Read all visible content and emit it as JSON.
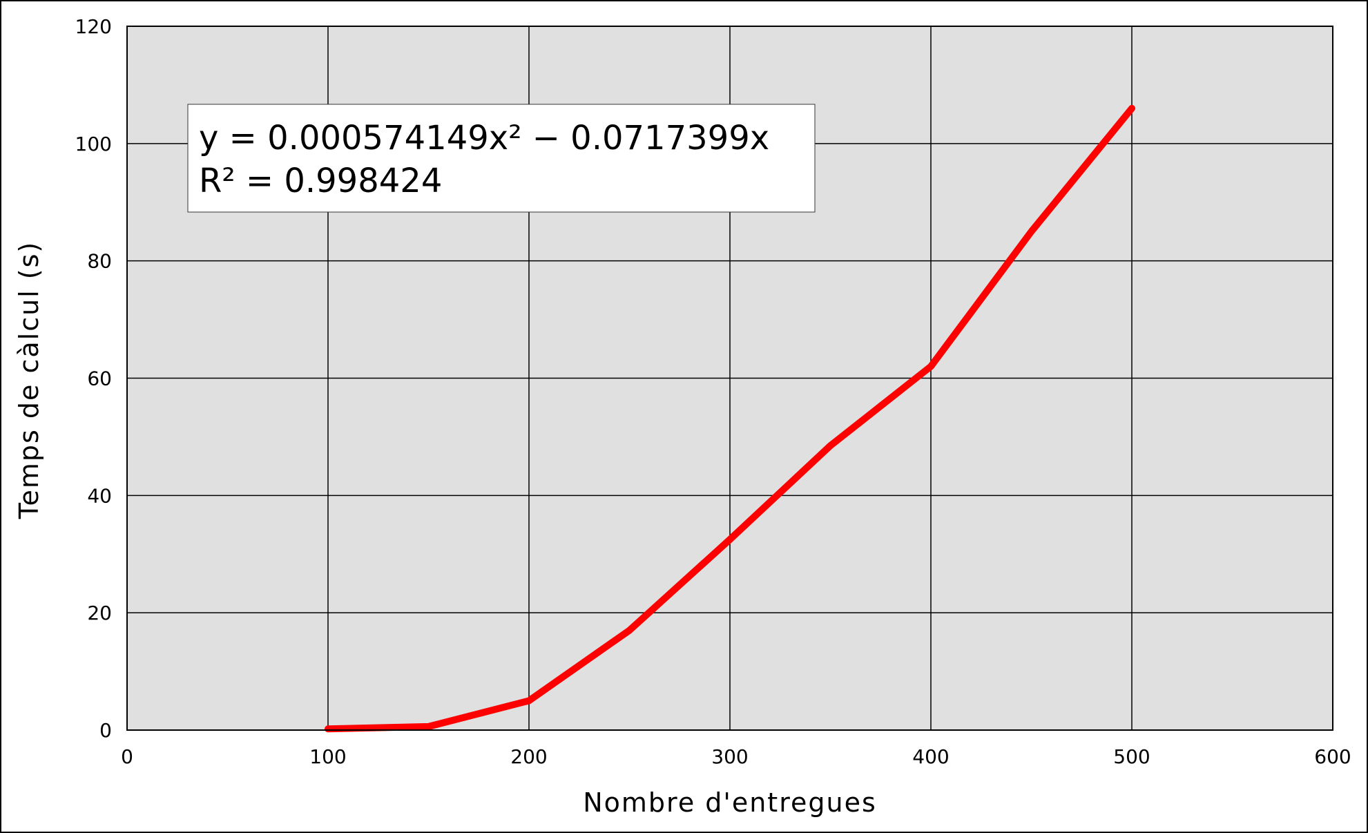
{
  "chart_data": {
    "type": "line",
    "xlabel": "Nombre d'entregues",
    "ylabel": "Temps de càlcul (s)",
    "xlim": [
      0,
      600
    ],
    "ylim": [
      0,
      120
    ],
    "xticks": [
      0,
      100,
      200,
      300,
      400,
      500,
      600
    ],
    "yticks": [
      0,
      20,
      40,
      60,
      80,
      100,
      120
    ],
    "x_tick_labels": [
      "0",
      "100",
      "200",
      "300",
      "400",
      "500",
      "600"
    ],
    "y_tick_labels": [
      "0",
      "20",
      "40",
      "60",
      "80",
      "100",
      "120"
    ],
    "grid": true,
    "series": [
      {
        "color": "#ff0000",
        "style": "solid",
        "x": [
          100,
          150,
          200,
          250,
          300,
          350,
          400,
          450,
          500
        ],
        "y": [
          0.2,
          0.6,
          5,
          17,
          32.5,
          48.5,
          62,
          85,
          106
        ]
      }
    ],
    "trendline": {
      "color": "#333333",
      "style": "dash-dot",
      "equation": "y = 0.000574149x² − 0.0717399x",
      "r_squared": "R² = 0.998424",
      "a": 0.000574149,
      "b": -0.0717399
    },
    "plot_background": "#e0e0e0"
  }
}
